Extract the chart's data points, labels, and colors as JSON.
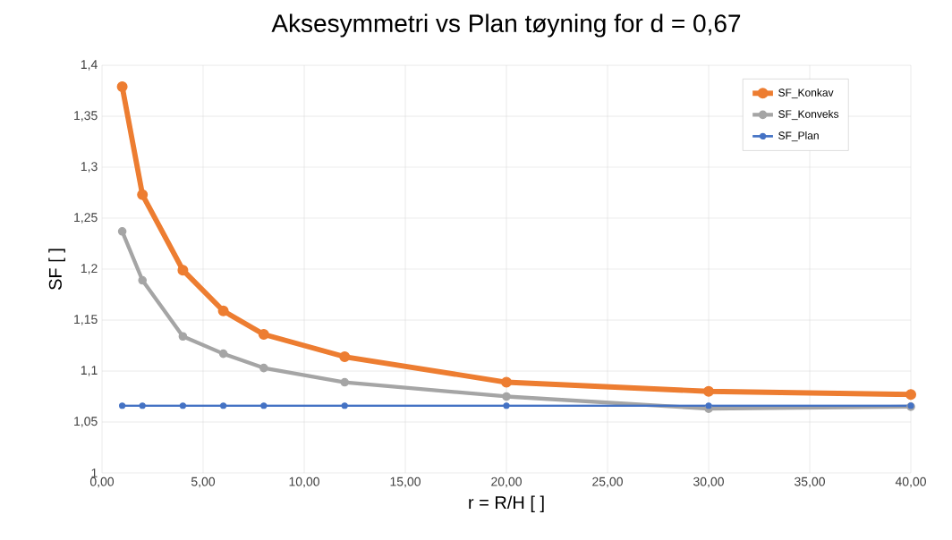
{
  "chart_data": {
    "type": "line",
    "title": "Aksesymmetri vs Plan tøyning for d = 0,67",
    "xlabel": "r = R/H [ ]",
    "ylabel": "SF [ ]",
    "x": [
      1,
      2,
      4,
      6,
      8,
      12,
      20,
      30,
      40
    ],
    "series": [
      {
        "name": "SF_Konkav",
        "color": "#ed7d31",
        "values": [
          1.379,
          1.273,
          1.199,
          1.159,
          1.136,
          1.114,
          1.089,
          1.08,
          1.077
        ]
      },
      {
        "name": "SF_Konveks",
        "color": "#a5a5a5",
        "values": [
          1.237,
          1.189,
          1.134,
          1.117,
          1.103,
          1.089,
          1.075,
          1.063,
          1.065
        ]
      },
      {
        "name": "SF_Plan",
        "color": "#4472c4",
        "values": [
          1.066,
          1.066,
          1.066,
          1.066,
          1.066,
          1.066,
          1.066,
          1.066,
          1.066
        ]
      }
    ],
    "xlim": [
      0,
      40
    ],
    "ylim": [
      1,
      1.4
    ],
    "xticks": [
      {
        "value": 0,
        "label": "0,00"
      },
      {
        "value": 5,
        "label": "5,00"
      },
      {
        "value": 10,
        "label": "10,00"
      },
      {
        "value": 15,
        "label": "15,00"
      },
      {
        "value": 20,
        "label": "20,00"
      },
      {
        "value": 25,
        "label": "25,00"
      },
      {
        "value": 30,
        "label": "30,00"
      },
      {
        "value": 35,
        "label": "35,00"
      },
      {
        "value": 40,
        "label": "40,00"
      }
    ],
    "yticks": [
      1,
      {
        "value": 1.05,
        "label": "1,05"
      },
      {
        "value": 1.1,
        "label": "1,1"
      },
      {
        "value": 1.15,
        "label": "1,15"
      },
      {
        "value": 1.2,
        "label": "1,2"
      },
      {
        "value": 1.25,
        "label": "1,25"
      },
      {
        "value": 1.3,
        "label": "1,3"
      },
      {
        "value": 1.35,
        "label": "1,35"
      },
      {
        "value": 1.4,
        "label": "1,4"
      }
    ],
    "grid": true,
    "legend": "top right",
    "marker": "circle",
    "line_style": "solid"
  }
}
